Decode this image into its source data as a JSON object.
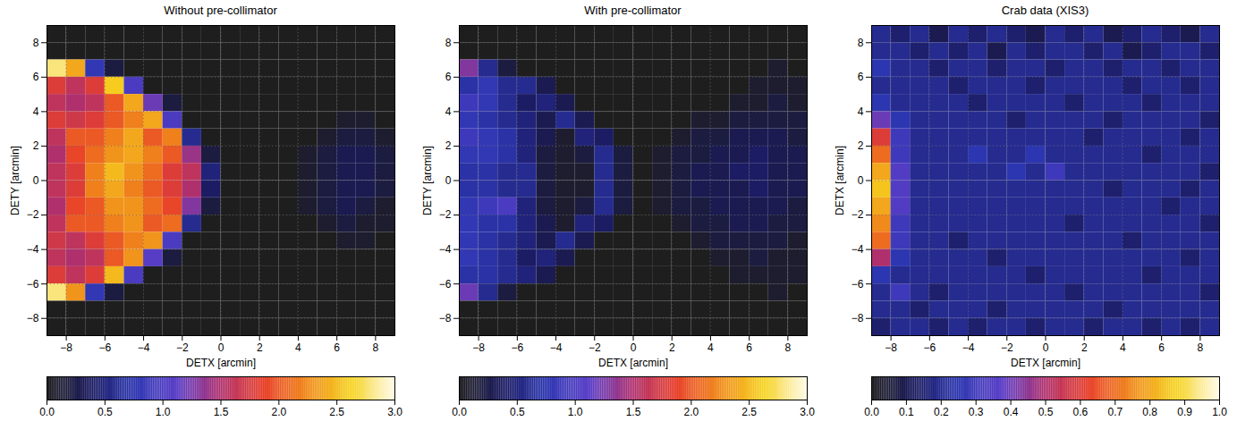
{
  "chart_data": [
    {
      "type": "heatmap",
      "title": "Without pre-collimator",
      "x_label": "DETX [arcmin]",
      "y_label": "DETY [arcmin]",
      "xlim": [
        -9,
        9
      ],
      "ylim": [
        -9,
        9
      ],
      "xticks": [
        -8,
        -6,
        -4,
        -2,
        0,
        2,
        4,
        6,
        8
      ],
      "yticks": [
        -8,
        -6,
        -4,
        -2,
        0,
        2,
        4,
        6,
        8
      ],
      "grid": true,
      "x_bins": [
        -9,
        -8,
        -7,
        -6,
        -5,
        -4,
        -3,
        -2,
        -1,
        0,
        1,
        2,
        3,
        4,
        5,
        6,
        7,
        8,
        9
      ],
      "y_bins": [
        9,
        8,
        7,
        6,
        5,
        4,
        3,
        2,
        1,
        0,
        -1,
        -2,
        -3,
        -4,
        -5,
        -6,
        -7,
        -8,
        -9
      ],
      "values": [
        [
          0,
          0,
          0,
          0,
          0,
          0,
          0,
          0,
          0,
          0,
          0,
          0,
          0,
          0,
          0,
          0,
          0,
          0
        ],
        [
          0,
          0,
          0,
          0,
          0,
          0,
          0,
          0,
          0,
          0,
          0,
          0,
          0,
          0,
          0,
          0,
          0,
          0
        ],
        [
          2.8,
          2.4,
          0.8,
          0.2,
          0,
          0,
          0,
          0,
          0,
          0,
          0,
          0,
          0,
          0,
          0,
          0,
          0,
          0
        ],
        [
          1.8,
          1.6,
          1.8,
          2.6,
          1.0,
          0,
          0,
          0,
          0,
          0,
          0,
          0,
          0,
          0,
          0,
          0,
          0,
          0
        ],
        [
          1.6,
          1.5,
          1.6,
          2.0,
          2.4,
          1.2,
          0.2,
          0,
          0,
          0,
          0,
          0,
          0,
          0,
          0,
          0,
          0,
          0
        ],
        [
          1.8,
          1.7,
          1.8,
          2.0,
          2.2,
          2.4,
          1.0,
          0,
          0,
          0,
          0,
          0,
          0,
          0,
          0,
          0.1,
          0.1,
          0
        ],
        [
          1.6,
          2.0,
          2.0,
          2.2,
          2.4,
          2.0,
          2.2,
          0.6,
          0,
          0,
          0,
          0,
          0,
          0,
          0.1,
          0.2,
          0.2,
          0.1
        ],
        [
          1.5,
          1.9,
          2.1,
          2.3,
          2.4,
          2.2,
          2.0,
          1.4,
          0.2,
          0,
          0,
          0,
          0,
          0.1,
          0.2,
          0.3,
          0.3,
          0.2
        ],
        [
          1.6,
          1.8,
          2.2,
          2.5,
          2.3,
          2.1,
          1.8,
          1.6,
          0.5,
          0,
          0,
          0,
          0,
          0.1,
          0.2,
          0.3,
          0.3,
          0.2
        ],
        [
          1.6,
          1.8,
          2.2,
          2.4,
          2.2,
          2.0,
          1.8,
          1.5,
          0.4,
          0,
          0,
          0,
          0,
          0.1,
          0.2,
          0.3,
          0.3,
          0.2
        ],
        [
          1.5,
          1.9,
          2.0,
          2.3,
          2.3,
          2.1,
          1.9,
          1.3,
          0.2,
          0,
          0,
          0,
          0,
          0.1,
          0.2,
          0.3,
          0.2,
          0.1
        ],
        [
          1.6,
          2.0,
          2.0,
          2.2,
          2.3,
          2.0,
          2.1,
          0.6,
          0,
          0,
          0,
          0,
          0,
          0,
          0.1,
          0.2,
          0.1,
          0.1
        ],
        [
          1.7,
          1.6,
          1.8,
          2.0,
          2.2,
          2.3,
          1.0,
          0,
          0,
          0,
          0,
          0,
          0,
          0,
          0,
          0.1,
          0.1,
          0
        ],
        [
          1.6,
          1.5,
          1.6,
          2.0,
          2.3,
          1.1,
          0.2,
          0,
          0,
          0,
          0,
          0,
          0,
          0,
          0,
          0,
          0,
          0
        ],
        [
          1.8,
          1.6,
          1.8,
          2.5,
          1.0,
          0,
          0,
          0,
          0,
          0,
          0,
          0,
          0,
          0,
          0,
          0,
          0,
          0
        ],
        [
          2.8,
          2.3,
          0.8,
          0.2,
          0,
          0,
          0,
          0,
          0,
          0,
          0,
          0,
          0,
          0,
          0,
          0,
          0,
          0
        ],
        [
          0,
          0,
          0,
          0,
          0,
          0,
          0,
          0,
          0,
          0,
          0,
          0,
          0,
          0,
          0,
          0,
          0,
          0
        ],
        [
          0,
          0,
          0,
          0,
          0,
          0,
          0,
          0,
          0,
          0,
          0,
          0,
          0,
          0,
          0,
          0,
          0,
          0
        ]
      ],
      "colorbar": {
        "range": [
          0,
          3
        ],
        "ticks": [
          0,
          0.5,
          1,
          1.5,
          2,
          2.5,
          3
        ]
      }
    },
    {
      "type": "heatmap",
      "title": "With pre-collimator",
      "x_label": "DETX [arcmin]",
      "y_label": "DETY [arcmin]",
      "xlim": [
        -9,
        9
      ],
      "ylim": [
        -9,
        9
      ],
      "xticks": [
        -8,
        -6,
        -4,
        -2,
        0,
        2,
        4,
        6,
        8
      ],
      "yticks": [
        -8,
        -6,
        -4,
        -2,
        0,
        2,
        4,
        6,
        8
      ],
      "grid": true,
      "x_bins": [
        -9,
        -8,
        -7,
        -6,
        -5,
        -4,
        -3,
        -2,
        -1,
        0,
        1,
        2,
        3,
        4,
        5,
        6,
        7,
        8,
        9
      ],
      "y_bins": [
        9,
        8,
        7,
        6,
        5,
        4,
        3,
        2,
        1,
        0,
        -1,
        -2,
        -3,
        -4,
        -5,
        -6,
        -7,
        -8,
        -9
      ],
      "values": [
        [
          0,
          0,
          0,
          0,
          0,
          0,
          0,
          0,
          0,
          0,
          0,
          0,
          0,
          0,
          0,
          0,
          0,
          0
        ],
        [
          0,
          0,
          0,
          0,
          0,
          0,
          0,
          0,
          0,
          0,
          0,
          0,
          0,
          0,
          0,
          0,
          0,
          0
        ],
        [
          1.3,
          0.6,
          0.2,
          0,
          0,
          0,
          0,
          0,
          0,
          0,
          0,
          0,
          0,
          0,
          0,
          0,
          0.1,
          0
        ],
        [
          0.7,
          0.8,
          0.6,
          0.6,
          0.3,
          0,
          0,
          0,
          0,
          0,
          0,
          0,
          0,
          0,
          0,
          0.1,
          0.1,
          0.1
        ],
        [
          0.9,
          0.8,
          0.6,
          0.4,
          0.5,
          0.3,
          0,
          0,
          0,
          0,
          0,
          0,
          0,
          0,
          0.1,
          0.1,
          0.2,
          0.1
        ],
        [
          0.8,
          0.7,
          0.6,
          0.5,
          0.3,
          0.6,
          0.3,
          0,
          0,
          0,
          0,
          0,
          0.1,
          0.1,
          0.2,
          0.2,
          0.2,
          0.2
        ],
        [
          0.9,
          0.8,
          0.7,
          0.5,
          0.3,
          0.1,
          0.5,
          0.4,
          0,
          0,
          0,
          0.1,
          0.2,
          0.2,
          0.3,
          0.3,
          0.3,
          0.2
        ],
        [
          0.8,
          0.8,
          0.7,
          0.5,
          0.2,
          0.1,
          0.2,
          0.6,
          0.2,
          0,
          0.1,
          0.2,
          0.2,
          0.3,
          0.3,
          0.4,
          0.3,
          0.3
        ],
        [
          0.7,
          0.7,
          0.6,
          0.6,
          0.2,
          0.1,
          0.1,
          0.6,
          0.2,
          0,
          0.1,
          0.2,
          0.3,
          0.3,
          0.4,
          0.4,
          0.3,
          0.3
        ],
        [
          0.7,
          0.7,
          0.6,
          0.6,
          0.2,
          0.1,
          0.1,
          0.6,
          0.2,
          0,
          0.1,
          0.2,
          0.3,
          0.3,
          0.3,
          0.4,
          0.3,
          0.3
        ],
        [
          0.8,
          0.9,
          1.0,
          0.5,
          0.2,
          0.1,
          0.2,
          0.6,
          0.2,
          0,
          0.1,
          0.2,
          0.2,
          0.3,
          0.3,
          0.3,
          0.3,
          0.2
        ],
        [
          0.8,
          0.7,
          0.7,
          0.5,
          0.3,
          0.1,
          0.5,
          0.4,
          0,
          0,
          0,
          0.1,
          0.2,
          0.2,
          0.3,
          0.3,
          0.2,
          0.2
        ],
        [
          0.8,
          0.7,
          0.6,
          0.5,
          0.3,
          0.6,
          0.3,
          0,
          0,
          0,
          0,
          0,
          0.1,
          0.2,
          0.2,
          0.2,
          0.2,
          0.1
        ],
        [
          0.8,
          0.7,
          0.6,
          0.4,
          0.5,
          0.3,
          0,
          0,
          0,
          0,
          0,
          0,
          0,
          0.1,
          0.1,
          0.2,
          0.1,
          0.1
        ],
        [
          0.7,
          0.7,
          0.6,
          0.5,
          0.3,
          0,
          0,
          0,
          0,
          0,
          0,
          0,
          0,
          0,
          0.1,
          0.1,
          0.1,
          0.1
        ],
        [
          1.2,
          0.6,
          0.2,
          0,
          0,
          0,
          0,
          0,
          0,
          0,
          0,
          0,
          0,
          0,
          0,
          0,
          0.1,
          0
        ],
        [
          0,
          0,
          0,
          0,
          0,
          0,
          0,
          0,
          0,
          0,
          0,
          0,
          0,
          0,
          0,
          0,
          0,
          0
        ],
        [
          0,
          0,
          0,
          0,
          0,
          0,
          0,
          0,
          0,
          0,
          0,
          0,
          0,
          0,
          0,
          0,
          0,
          0
        ]
      ],
      "colorbar": {
        "range": [
          0,
          3
        ],
        "ticks": [
          0,
          0.5,
          1,
          1.5,
          2,
          2.5,
          3
        ]
      }
    },
    {
      "type": "heatmap",
      "title": "Crab data (XIS3)",
      "x_label": "DETX [arcmin]",
      "y_label": "DETX [arcmin]",
      "xlim": [
        -9,
        9
      ],
      "ylim": [
        -9,
        9
      ],
      "xticks": [
        -8,
        -6,
        -4,
        -2,
        0,
        2,
        4,
        6,
        8
      ],
      "yticks": [
        -8,
        -6,
        -4,
        -2,
        0,
        2,
        4,
        6,
        8
      ],
      "grid": true,
      "x_bins": [
        -9,
        -8,
        -7,
        -6,
        -5,
        -4,
        -3,
        -2,
        -1,
        0,
        1,
        2,
        3,
        4,
        5,
        6,
        7,
        8,
        9
      ],
      "y_bins": [
        9,
        8,
        7,
        6,
        5,
        4,
        3,
        2,
        1,
        0,
        -1,
        -2,
        -3,
        -4,
        -5,
        -6,
        -7,
        -8,
        -9
      ],
      "values": [
        [
          0.2,
          0.15,
          0.2,
          0.1,
          0.2,
          0.15,
          0.2,
          0.15,
          0.1,
          0.2,
          0.15,
          0.2,
          0.1,
          0.15,
          0.2,
          0.15,
          0.1,
          0.2
        ],
        [
          0.2,
          0.2,
          0.15,
          0.2,
          0.15,
          0.2,
          0.1,
          0.2,
          0.15,
          0.2,
          0.2,
          0.15,
          0.2,
          0.1,
          0.15,
          0.2,
          0.2,
          0.15
        ],
        [
          0.25,
          0.2,
          0.2,
          0.15,
          0.2,
          0.2,
          0.15,
          0.2,
          0.2,
          0.15,
          0.2,
          0.2,
          0.15,
          0.2,
          0.2,
          0.15,
          0.2,
          0.2
        ],
        [
          0.2,
          0.2,
          0.2,
          0.2,
          0.15,
          0.2,
          0.2,
          0.2,
          0.15,
          0.2,
          0.2,
          0.2,
          0.2,
          0.15,
          0.2,
          0.2,
          0.15,
          0.2
        ],
        [
          0.25,
          0.2,
          0.2,
          0.2,
          0.2,
          0.15,
          0.2,
          0.2,
          0.2,
          0.2,
          0.15,
          0.2,
          0.2,
          0.2,
          0.15,
          0.2,
          0.2,
          0.2
        ],
        [
          0.4,
          0.25,
          0.2,
          0.2,
          0.2,
          0.2,
          0.2,
          0.15,
          0.2,
          0.2,
          0.2,
          0.2,
          0.15,
          0.2,
          0.2,
          0.2,
          0.2,
          0.15
        ],
        [
          0.6,
          0.3,
          0.2,
          0.2,
          0.2,
          0.2,
          0.2,
          0.2,
          0.2,
          0.2,
          0.2,
          0.15,
          0.2,
          0.2,
          0.2,
          0.2,
          0.15,
          0.2
        ],
        [
          0.7,
          0.3,
          0.2,
          0.2,
          0.2,
          0.25,
          0.2,
          0.2,
          0.25,
          0.2,
          0.2,
          0.2,
          0.2,
          0.2,
          0.15,
          0.2,
          0.2,
          0.2
        ],
        [
          0.8,
          0.35,
          0.2,
          0.2,
          0.2,
          0.2,
          0.2,
          0.25,
          0.2,
          0.3,
          0.2,
          0.2,
          0.2,
          0.2,
          0.2,
          0.2,
          0.2,
          0.15
        ],
        [
          0.85,
          0.35,
          0.2,
          0.2,
          0.2,
          0.2,
          0.2,
          0.2,
          0.2,
          0.2,
          0.2,
          0.2,
          0.15,
          0.2,
          0.2,
          0.2,
          0.15,
          0.2
        ],
        [
          0.8,
          0.35,
          0.2,
          0.2,
          0.2,
          0.2,
          0.2,
          0.2,
          0.2,
          0.2,
          0.2,
          0.2,
          0.2,
          0.2,
          0.2,
          0.15,
          0.2,
          0.2
        ],
        [
          0.75,
          0.3,
          0.2,
          0.2,
          0.2,
          0.2,
          0.2,
          0.2,
          0.2,
          0.2,
          0.15,
          0.2,
          0.2,
          0.2,
          0.2,
          0.2,
          0.2,
          0.15
        ],
        [
          0.7,
          0.3,
          0.2,
          0.2,
          0.15,
          0.2,
          0.2,
          0.2,
          0.2,
          0.2,
          0.2,
          0.2,
          0.2,
          0.15,
          0.2,
          0.2,
          0.2,
          0.2
        ],
        [
          0.5,
          0.25,
          0.2,
          0.2,
          0.2,
          0.2,
          0.15,
          0.2,
          0.2,
          0.2,
          0.2,
          0.2,
          0.2,
          0.2,
          0.2,
          0.2,
          0.15,
          0.2
        ],
        [
          0.25,
          0.2,
          0.2,
          0.2,
          0.2,
          0.2,
          0.2,
          0.2,
          0.15,
          0.2,
          0.2,
          0.2,
          0.2,
          0.2,
          0.15,
          0.2,
          0.2,
          0.2
        ],
        [
          0.2,
          0.3,
          0.2,
          0.15,
          0.2,
          0.2,
          0.2,
          0.2,
          0.2,
          0.2,
          0.15,
          0.2,
          0.2,
          0.2,
          0.2,
          0.2,
          0.2,
          0.15
        ],
        [
          0.2,
          0.2,
          0.15,
          0.2,
          0.2,
          0.2,
          0.15,
          0.2,
          0.2,
          0.2,
          0.2,
          0.2,
          0.15,
          0.2,
          0.2,
          0.2,
          0.2,
          0.2
        ],
        [
          0.15,
          0.2,
          0.2,
          0.15,
          0.2,
          0.15,
          0.2,
          0.2,
          0.15,
          0.2,
          0.2,
          0.15,
          0.2,
          0.2,
          0.15,
          0.2,
          0.15,
          0.2
        ]
      ],
      "colorbar": {
        "range": [
          0,
          1
        ],
        "ticks": [
          0,
          0.1,
          0.2,
          0.3,
          0.4,
          0.5,
          0.6,
          0.7,
          0.8,
          0.9,
          1
        ]
      }
    }
  ]
}
